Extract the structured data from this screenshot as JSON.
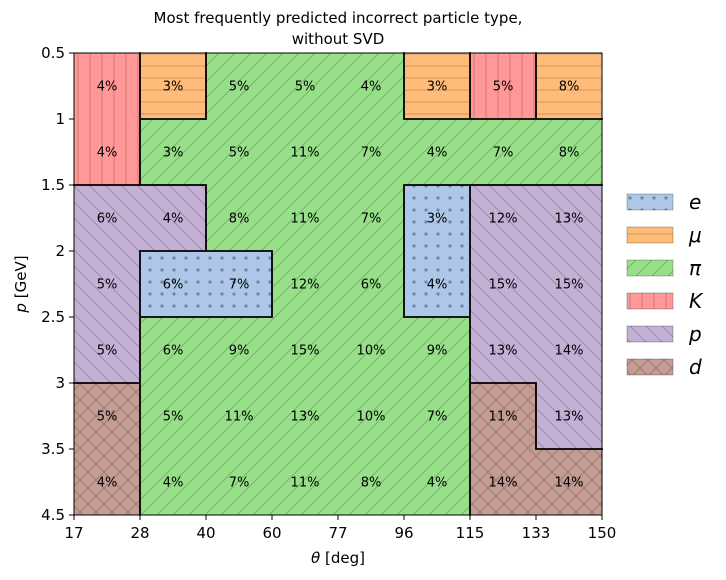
{
  "chart_data": {
    "type": "heatmap",
    "title": [
      "Most frequently predicted incorrect particle type,",
      "without SVD"
    ],
    "xlabel_symbol": "θ",
    "xlabel_unit": " [deg]",
    "ylabel_symbol": "p",
    "ylabel_unit": " [GeV]",
    "x_edges": [
      "17",
      "28",
      "40",
      "60",
      "77",
      "96",
      "115",
      "133",
      "150"
    ],
    "y_edges": [
      "0.5",
      "1",
      "1.5",
      "2",
      "2.5",
      "3",
      "3.5",
      "4.5"
    ],
    "classes": [
      {
        "key": "e",
        "label": "e",
        "color": "#aec7e8",
        "hatch": "dots"
      },
      {
        "key": "mu",
        "label": "μ",
        "color": "#ffbb78",
        "hatch": "hlines"
      },
      {
        "key": "pi",
        "label": "π",
        "color": "#98df8a",
        "hatch": "diag"
      },
      {
        "key": "K",
        "label": "K",
        "color": "#ff9896",
        "hatch": "vlines"
      },
      {
        "key": "p",
        "label": "p",
        "color": "#c5b0d5",
        "hatch": "backdiag"
      },
      {
        "key": "d",
        "label": "d",
        "color": "#c49c94",
        "hatch": "cross"
      }
    ],
    "cells": [
      [
        "K",
        "mu",
        "pi",
        "pi",
        "pi",
        "mu",
        "K",
        "mu"
      ],
      [
        "K",
        "pi",
        "pi",
        "pi",
        "pi",
        "pi",
        "pi",
        "pi"
      ],
      [
        "p",
        "p",
        "pi",
        "pi",
        "pi",
        "e",
        "p",
        "p"
      ],
      [
        "p",
        "e",
        "e",
        "pi",
        "pi",
        "e",
        "p",
        "p"
      ],
      [
        "p",
        "pi",
        "pi",
        "pi",
        "pi",
        "pi",
        "p",
        "p"
      ],
      [
        "d",
        "pi",
        "pi",
        "pi",
        "pi",
        "pi",
        "d",
        "p"
      ],
      [
        "d",
        "pi",
        "pi",
        "pi",
        "pi",
        "pi",
        "d",
        "d"
      ]
    ],
    "values": [
      [
        "4%",
        "3%",
        "5%",
        "5%",
        "4%",
        "3%",
        "5%",
        "8%"
      ],
      [
        "4%",
        "3%",
        "5%",
        "11%",
        "7%",
        "4%",
        "7%",
        "8%"
      ],
      [
        "6%",
        "4%",
        "8%",
        "11%",
        "7%",
        "3%",
        "12%",
        "13%"
      ],
      [
        "5%",
        "6%",
        "7%",
        "12%",
        "6%",
        "4%",
        "15%",
        "15%"
      ],
      [
        "5%",
        "6%",
        "9%",
        "15%",
        "10%",
        "9%",
        "13%",
        "14%"
      ],
      [
        "5%",
        "5%",
        "11%",
        "13%",
        "10%",
        "7%",
        "11%",
        "13%"
      ],
      [
        "4%",
        "4%",
        "7%",
        "11%",
        "8%",
        "4%",
        "14%",
        "14%"
      ]
    ],
    "legend": "right"
  }
}
